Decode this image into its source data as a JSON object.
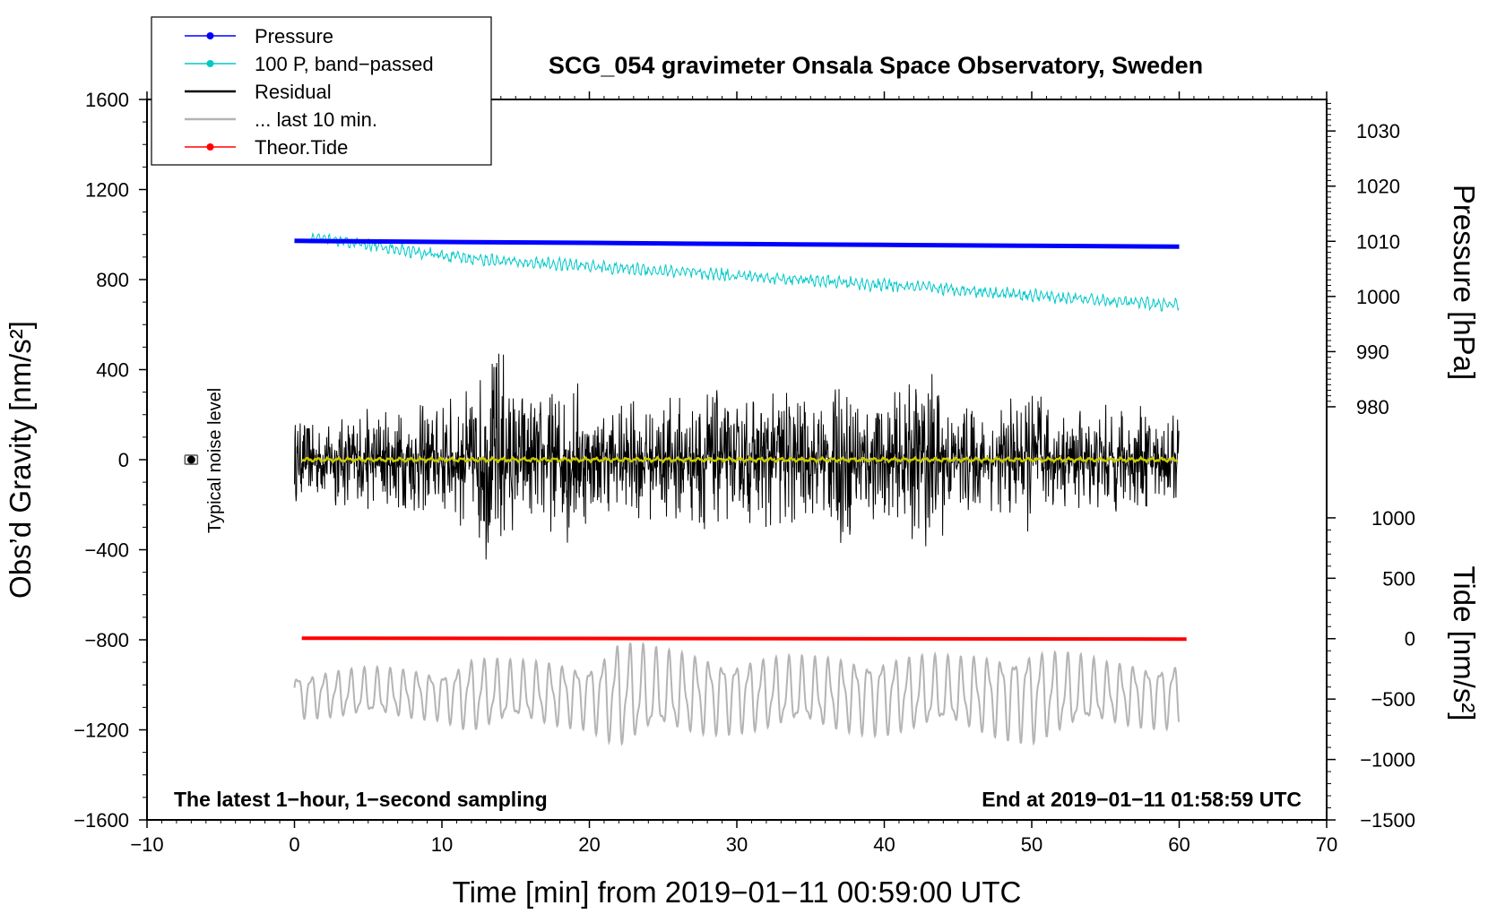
{
  "chart_data": {
    "type": "line",
    "title": "SCG_054 gravimeter Onsala Space Observatory, Sweden",
    "xlabel": "Time [min] from 2019−01−11 00:59:00 UTC",
    "ylabel_left": "Obs’d Gravity [nm/s²]",
    "ylabel_right_pressure": "Pressure [hPa]",
    "ylabel_right_tide": "Tide [nm/s²]",
    "xlim": [
      -10,
      70
    ],
    "ylim": [
      -1600,
      1600
    ],
    "x_ticks": [
      -10,
      0,
      10,
      20,
      30,
      40,
      50,
      60,
      70
    ],
    "x_tick_labels": [
      "−10",
      "0",
      "10",
      "20",
      "30",
      "40",
      "50",
      "60",
      "70"
    ],
    "y_ticks": [
      -1600,
      -1200,
      -800,
      -400,
      0,
      400,
      800,
      1200,
      1600
    ],
    "y_tick_labels": [
      "−1600",
      "−1200",
      "−800",
      "−400",
      "0",
      "400",
      "800",
      "1200",
      "1600"
    ],
    "pressure_axis": {
      "ticks": [
        980,
        990,
        1000,
        1010,
        1020,
        1030
      ],
      "tick_labels": [
        "980",
        "990",
        "1000",
        "1010",
        "1020",
        "1030"
      ],
      "ref_value": 1010,
      "ref_gravity": 970,
      "nm_per_hpa": 24.5
    },
    "tide_axis": {
      "ticks": [
        -1500,
        -1000,
        -500,
        0,
        500,
        1000
      ],
      "tick_labels": [
        "−1500",
        "−1000",
        "−500",
        "0",
        "500",
        "1000"
      ],
      "zero_gravity": -795,
      "scale": 0.5367
    },
    "notes": {
      "left": "The latest 1−hour, 1−second sampling",
      "right": "End at 2019−01−11 01:58:59 UTC"
    },
    "noise_label": "Typical noise level",
    "noise_marker": {
      "x": -7,
      "y": 0,
      "err": 20
    },
    "legend_position": "top-left",
    "legend": [
      {
        "label": "Pressure",
        "color": "#0000ff",
        "style": "line-dot"
      },
      {
        "label": "100 P, band−passed",
        "color": "#00c8c8",
        "style": "line-dot"
      },
      {
        "label": "Residual",
        "color": "#000000",
        "style": "line"
      },
      {
        "label": "... last 10 min.",
        "color": "#b4b4b4",
        "style": "line"
      },
      {
        "label": "Theor.Tide",
        "color": "#ff0000",
        "style": "line-dot"
      }
    ],
    "series": [
      {
        "name": "Pressure",
        "color": "#0000ff",
        "x": [
          0,
          10,
          20,
          30,
          40,
          50,
          60
        ],
        "y": [
          972,
          967,
          963,
          958,
          954,
          950,
          946
        ]
      },
      {
        "name": "100 P, band−passed",
        "color": "#00c8c8",
        "x": [
          1,
          5,
          10,
          15,
          20,
          25,
          30,
          35,
          40,
          45,
          50,
          55,
          60
        ],
        "y": [
          985,
          955,
          905,
          878,
          860,
          838,
          818,
          795,
          775,
          755,
          730,
          705,
          685
        ]
      },
      {
        "name": "Residual",
        "color": "#000000",
        "x_range": [
          0,
          60
        ],
        "envelope_x": [
          0,
          5,
          10,
          12,
          14,
          15,
          17,
          19,
          20,
          25,
          28,
          30,
          33,
          35,
          37,
          40,
          43,
          45,
          48,
          50,
          52,
          55,
          60
        ],
        "envelope_y": [
          160,
          200,
          230,
          280,
          470,
          300,
          260,
          340,
          220,
          230,
          300,
          210,
          330,
          200,
          320,
          220,
          360,
          220,
          200,
          300,
          180,
          220,
          180
        ]
      },
      {
        "name": "residual smoothed",
        "color": "#c8c800",
        "x_range": [
          0.5,
          60
        ],
        "level": 0
      },
      {
        "name": "Theor.Tide",
        "color": "#ff0000",
        "x": [
          0.5,
          60.5
        ],
        "y": [
          -793,
          -797
        ]
      },
      {
        "name": "... last 10 min.",
        "color": "#b4b4b4",
        "x_range": [
          0,
          60
        ],
        "center": -1040,
        "envelope_x": [
          0,
          5,
          10,
          12,
          15,
          20,
          22,
          25,
          28,
          30,
          35,
          40,
          45,
          50,
          55,
          60
        ],
        "envelope_y": [
          110,
          120,
          120,
          180,
          150,
          160,
          260,
          200,
          190,
          180,
          170,
          190,
          170,
          230,
          150,
          160
        ]
      }
    ]
  }
}
